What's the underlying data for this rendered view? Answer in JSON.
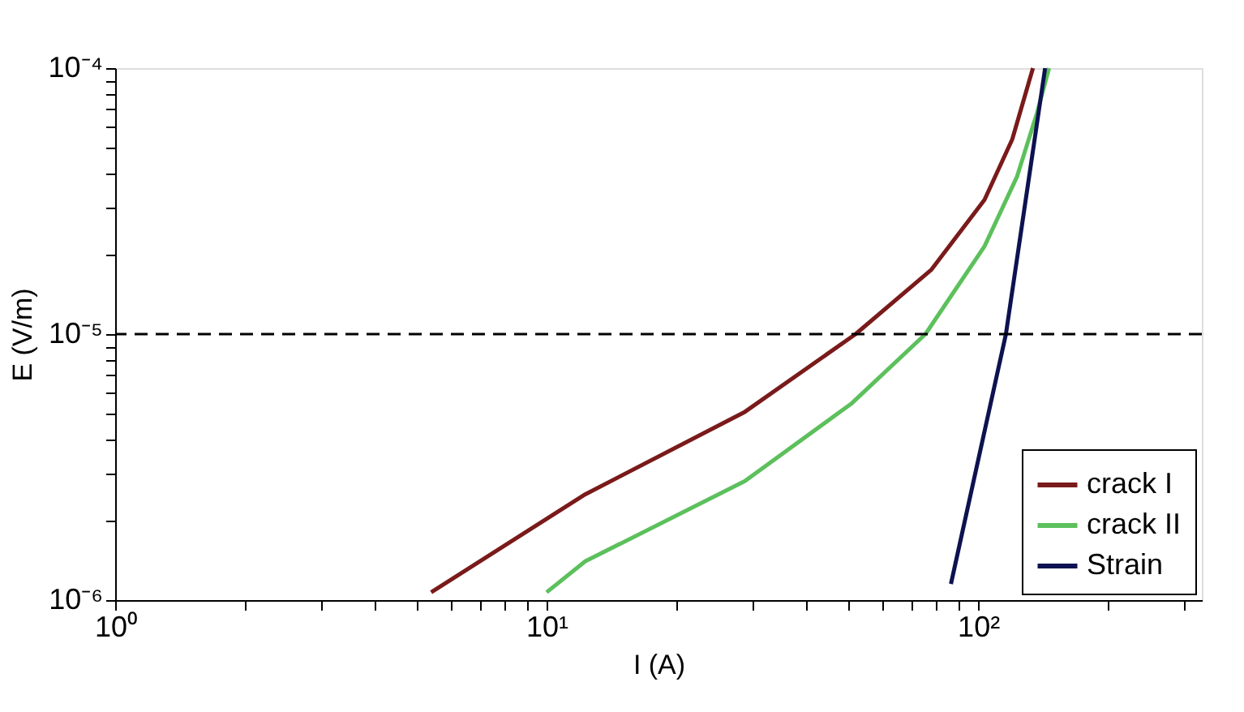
{
  "chart_data": {
    "type": "line",
    "xlabel": "I (A)",
    "ylabel": "E (V/m)",
    "log": "xy",
    "xlim": [
      1,
      330
    ],
    "ylim": [
      1e-06,
      0.0001
    ],
    "xticks": [
      {
        "value": 1,
        "label": "10⁰"
      },
      {
        "value": 2,
        "label": null
      },
      {
        "value": 3,
        "label": null
      },
      {
        "value": 4,
        "label": null
      },
      {
        "value": 5,
        "label": null
      },
      {
        "value": 6,
        "label": null
      },
      {
        "value": 7,
        "label": null
      },
      {
        "value": 8,
        "label": null
      },
      {
        "value": 9,
        "label": null
      },
      {
        "value": 10,
        "label": "10¹"
      },
      {
        "value": 20,
        "label": null
      },
      {
        "value": 30,
        "label": null
      },
      {
        "value": 40,
        "label": null
      },
      {
        "value": 50,
        "label": null
      },
      {
        "value": 60,
        "label": null
      },
      {
        "value": 70,
        "label": null
      },
      {
        "value": 80,
        "label": null
      },
      {
        "value": 90,
        "label": null
      },
      {
        "value": 100,
        "label": "10²"
      },
      {
        "value": 200,
        "label": null
      },
      {
        "value": 300,
        "label": null
      }
    ],
    "yticks": [
      {
        "value": 1e-06,
        "label": "10⁻⁶"
      },
      {
        "value": 2e-06,
        "label": null
      },
      {
        "value": 3e-06,
        "label": null
      },
      {
        "value": 4e-06,
        "label": null
      },
      {
        "value": 5e-06,
        "label": null
      },
      {
        "value": 6e-06,
        "label": null
      },
      {
        "value": 7e-06,
        "label": null
      },
      {
        "value": 8e-06,
        "label": null
      },
      {
        "value": 9e-06,
        "label": null
      },
      {
        "value": 1e-05,
        "label": "10⁻⁵"
      },
      {
        "value": 2e-05,
        "label": null
      },
      {
        "value": 3e-05,
        "label": null
      },
      {
        "value": 4e-05,
        "label": null
      },
      {
        "value": 5e-05,
        "label": null
      },
      {
        "value": 6e-05,
        "label": null
      },
      {
        "value": 7e-05,
        "label": null
      },
      {
        "value": 8e-05,
        "label": null
      },
      {
        "value": 9e-05,
        "label": null
      },
      {
        "value": 0.0001,
        "label": "10⁻⁴"
      }
    ],
    "grid": false,
    "legend": "bottom right",
    "marker": "none",
    "line_style": "solid",
    "ref_lines": [
      {
        "axis": "y",
        "value": 1e-05,
        "color": "#000000",
        "line_style": "dashed"
      }
    ],
    "series": [
      {
        "name": "crack I",
        "color": "#7a1a1a",
        "x": [
          5.4,
          12.3,
          28.8,
          52,
          78,
          103.5,
          120,
          134
        ],
        "values": [
          1.07e-06,
          2.5e-06,
          5.1e-06,
          1e-05,
          1.75e-05,
          3.2e-05,
          5.4e-05,
          0.0001
        ]
      },
      {
        "name": "crack II",
        "color": "#5cc05c",
        "x": [
          10,
          12.3,
          28.8,
          51,
          75.5,
          103.5,
          123,
          137,
          146
        ],
        "values": [
          1.07e-06,
          1.4e-06,
          2.8e-06,
          5.5e-06,
          1e-05,
          2.14e-05,
          3.9e-05,
          6.8e-05,
          0.0001
        ]
      },
      {
        "name": "Strain",
        "color": "#0d1250",
        "x": [
          86.5,
          116,
          143
        ],
        "values": [
          1.15e-06,
          1e-05,
          0.0001
        ]
      }
    ]
  }
}
